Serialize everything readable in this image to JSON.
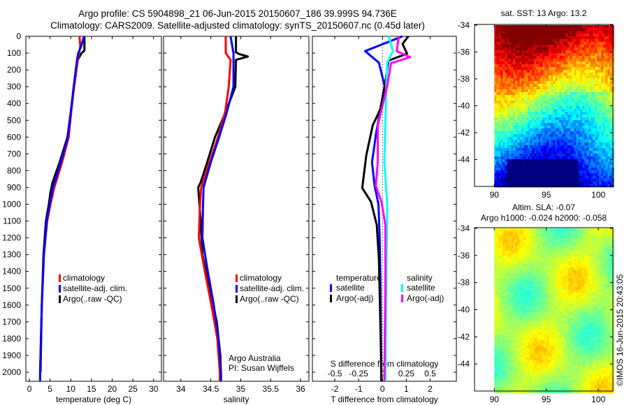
{
  "title": {
    "line1": "Argo profile: CS 5904898_21 06-Jun-2015 20150607_186 39.999S 94.736E",
    "line2": "Climatology: CARS2009. Satellite-adjusted climatology: synTS_20150607.nc (0.45d later)"
  },
  "chart_data": [
    {
      "id": "temperature",
      "type": "line",
      "xlabel": "temperature (deg C)",
      "ylabel": "depth",
      "xlim": [
        -0.85,
        31.9
      ],
      "ylim": [
        0,
        2054
      ],
      "y_inverted": true,
      "xticks": [
        "0",
        "5",
        "10",
        "15",
        "20",
        "25",
        "30"
      ],
      "yticks": [
        "0",
        "100",
        "200",
        "300",
        "400",
        "500",
        "600",
        "700",
        "800",
        "900",
        "1000",
        "1100",
        "1200",
        "1300",
        "1400",
        "1500",
        "1600",
        "1700",
        "1800",
        "1900",
        "2000"
      ],
      "series": [
        {
          "name": "Argo(..raw -QC)",
          "color": "#000000",
          "depth": [
            0,
            85,
            100,
            140,
            300,
            450,
            600,
            750,
            870,
            930,
            1000,
            1100,
            1300,
            1600,
            2000
          ],
          "values": [
            13.3,
            13.3,
            12.6,
            11.7,
            10.8,
            10.0,
            9.2,
            7.3,
            5.6,
            5.1,
            4.7,
            4.0,
            3.4,
            3.0,
            2.7
          ]
        },
        {
          "name": "climatology",
          "color": "#ff0000",
          "depth": [
            0,
            60,
            100,
            140,
            300,
            450,
            600,
            750,
            900,
            1000,
            1100,
            1300,
            1600,
            2000,
            2054
          ],
          "values": [
            12.1,
            12.3,
            12.0,
            11.7,
            10.8,
            10.1,
            9.5,
            7.9,
            6.0,
            5.1,
            4.3,
            3.5,
            3.0,
            2.6,
            2.6
          ]
        },
        {
          "name": "satellite-adj. clim.",
          "color": "#0000ff",
          "depth": [
            0,
            60,
            100,
            140,
            300,
            450,
            600,
            750,
            900,
            1000,
            1100,
            1300,
            1600,
            2000,
            2054
          ],
          "values": [
            13.2,
            12.5,
            11.8,
            11.5,
            10.7,
            10.0,
            9.3,
            7.6,
            5.7,
            4.9,
            4.2,
            3.5,
            3.0,
            2.6,
            2.6
          ]
        }
      ],
      "legend": [
        {
          "label": "climatology",
          "color": "#ff0000"
        },
        {
          "label": "satellite-adj. clim.",
          "color": "#0000ff"
        },
        {
          "label": "Argo(..raw -QC)",
          "color": "#000000"
        }
      ]
    },
    {
      "id": "salinity",
      "type": "line",
      "xlabel": "salinity",
      "xlim": [
        33.71,
        36.14
      ],
      "ylim": [
        0,
        2054
      ],
      "y_inverted": true,
      "xticks": [
        "34",
        "34.5",
        "35",
        "35.5",
        "36"
      ],
      "series": [
        {
          "name": "Argo(..raw -QC)",
          "color": "#000000",
          "depth": [
            0,
            95,
            105,
            120,
            140,
            300,
            450,
            600,
            750,
            870,
            900,
            1000,
            1100,
            1300,
            1500,
            1700,
            1900,
            2040
          ],
          "values": [
            34.92,
            34.92,
            34.97,
            35.12,
            34.92,
            34.91,
            34.75,
            34.57,
            34.44,
            34.33,
            34.29,
            34.31,
            34.33,
            34.36,
            34.48,
            34.6,
            34.66,
            34.67
          ]
        },
        {
          "name": "climatology",
          "color": "#ff0000",
          "depth": [
            0,
            100,
            140,
            300,
            450,
            600,
            750,
            900,
            1000,
            1200,
            1400,
            1600,
            1800,
            2000,
            2054
          ],
          "values": [
            34.75,
            34.75,
            34.83,
            34.8,
            34.74,
            34.62,
            34.48,
            34.34,
            34.32,
            34.3,
            34.4,
            34.51,
            34.61,
            34.65,
            34.65
          ]
        },
        {
          "name": "satellite-adj. clim.",
          "color": "#0000ff",
          "depth": [
            0,
            100,
            140,
            300,
            450,
            600,
            750,
            900,
            1000,
            1200,
            1400,
            1600,
            1800,
            2000,
            2054
          ],
          "values": [
            34.83,
            34.88,
            34.88,
            34.88,
            34.77,
            34.64,
            34.5,
            34.38,
            34.37,
            34.36,
            34.45,
            34.55,
            34.63,
            34.67,
            34.67
          ]
        }
      ],
      "legend": [
        {
          "label": "climatology",
          "color": "#ff0000"
        },
        {
          "label": "satellite-adj. clim.",
          "color": "#0000ff"
        },
        {
          "label": "Argo(..raw -QC)",
          "color": "#000000"
        }
      ],
      "annotation": [
        "Argo Australia",
        "PI: Susan Wijffels"
      ]
    },
    {
      "id": "difference",
      "type": "line",
      "xlabel": "T difference from climatology",
      "xlabel_top": "S difference from climatology",
      "xlim": [
        -2.94,
        3.1
      ],
      "s_scale": 4,
      "ylim": [
        0,
        2054
      ],
      "y_inverted": true,
      "xticks": [
        "-2",
        "-1",
        "0",
        "1",
        "2"
      ],
      "s_ticks": [
        "-0.5",
        "-0.25",
        "0",
        "0.25",
        "0.5"
      ],
      "series": [
        {
          "name": "temperature satellite",
          "quantity": "T",
          "color": "#0000ff",
          "depth": [
            0,
            88,
            157,
            295,
            434,
            572,
            750,
            890,
            1000,
            1190,
            1500,
            2054
          ],
          "values": [
            0.84,
            -0.73,
            -0.15,
            0.09,
            -0.09,
            -0.26,
            -0.44,
            -0.33,
            -0.17,
            -0.12,
            -0.08,
            -0.05
          ]
        },
        {
          "name": "temperature Argo(-adj)",
          "quantity": "T",
          "color": "#000000",
          "depth": [
            0,
            45,
            103,
            145,
            295,
            434,
            530,
            709,
            903,
            986,
            1123,
            1330,
            1900,
            2054
          ],
          "values": [
            1.09,
            0.84,
            1.03,
            0.25,
            0.1,
            -0.09,
            -0.41,
            -0.68,
            -0.85,
            -0.48,
            -0.24,
            -0.15,
            -0.06,
            -0.05
          ]
        },
        {
          "name": "salinity satellite",
          "quantity": "S",
          "color": "#00ffff",
          "depth": [
            0,
            88,
            157,
            295,
            750,
            1000,
            1400,
            2054
          ],
          "values": [
            0.066,
            0.11,
            0.05,
            0.04,
            0.02,
            0.05,
            0.04,
            0.03
          ]
        },
        {
          "name": "salinity Argo(-adj)",
          "quantity": "S",
          "color": "#ff00ff",
          "depth": [
            0,
            88,
            124,
            160,
            295,
            530,
            750,
            890,
            986,
            1123,
            1500,
            2054
          ],
          "values": [
            0.17,
            0.15,
            0.29,
            0.09,
            0.05,
            -0.05,
            -0.05,
            -0.07,
            -0.01,
            0.03,
            0.03,
            0.02
          ]
        }
      ],
      "legend": {
        "temperature_title": "temperature",
        "salinity_title": "salinity",
        "temperature": [
          {
            "label": "satellite",
            "color": "#0000ff"
          },
          {
            "label": "Argo(-adj)",
            "color": "#000000"
          }
        ],
        "salinity": [
          {
            "label": "satellite",
            "color": "#00ffff"
          },
          {
            "label": "Argo(-adj)",
            "color": "#ff00ff"
          }
        ]
      }
    },
    {
      "id": "sst-map",
      "type": "heatmap",
      "title": "sat. SST: 13 Argo: 13.2",
      "xlim": [
        88.1,
        101.4
      ],
      "ylim": [
        -46.0,
        -33.95
      ],
      "xticks": [
        "90",
        "95",
        "100"
      ],
      "yticks": [
        "-34",
        "-36",
        "-38",
        "-40",
        "-42",
        "-44"
      ]
    },
    {
      "id": "sla-map",
      "type": "heatmap",
      "title": "Altim. SLA: -0.07",
      "subtitle": "Argo h1000: -0.024 h2000: -0.058",
      "xlim": [
        88.1,
        101.4
      ],
      "ylim": [
        -46.0,
        -33.95
      ],
      "xticks": [
        "90",
        "95",
        "100"
      ],
      "yticks": [
        "-34",
        "-36",
        "-38",
        "-40",
        "-42",
        "-44"
      ]
    }
  ],
  "footer": "©IMOS 16-Jun-2015 20:43:05"
}
